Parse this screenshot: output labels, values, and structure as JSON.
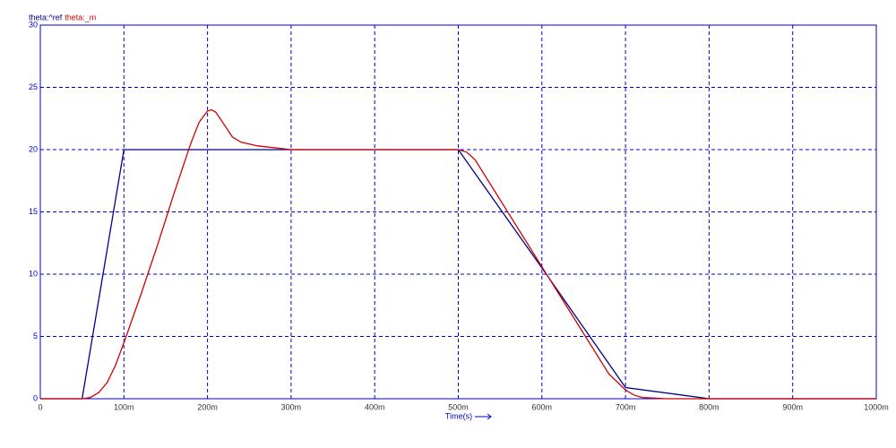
{
  "chart_data": {
    "type": "line",
    "xlabel": "Time(s)",
    "xlim": [
      0,
      1
    ],
    "xticks": [
      0,
      {
        "value": 0.1,
        "label": "100m"
      },
      {
        "value": 0.2,
        "label": "200m"
      },
      {
        "value": 0.3,
        "label": "300m"
      },
      {
        "value": 0.4,
        "label": "400m"
      },
      {
        "value": 0.5,
        "label": "500m"
      },
      {
        "value": 0.6,
        "label": "600m"
      },
      {
        "value": 0.7,
        "label": "700m"
      },
      {
        "value": 0.8,
        "label": "800m"
      },
      {
        "value": 0.9,
        "label": "900m"
      },
      {
        "value": 1,
        "label": "1000m"
      }
    ],
    "ylim": [
      0,
      30
    ],
    "yticks": [
      0,
      5,
      10,
      15,
      20,
      25,
      30
    ],
    "grid": true,
    "legend": "top-left",
    "series": [
      {
        "name": "theta:^ref",
        "color": "#00008b",
        "x": [
          0,
          0.05,
          0.1,
          0.5,
          0.6,
          0.7,
          0.8,
          1.0
        ],
        "values": [
          0,
          0,
          20,
          20,
          10.5,
          0.9,
          0,
          0
        ]
      },
      {
        "name": "theta:_m",
        "color": "#cc0000",
        "x": [
          0,
          0.05,
          0.06,
          0.07,
          0.08,
          0.09,
          0.1,
          0.12,
          0.14,
          0.16,
          0.18,
          0.19,
          0.2,
          0.205,
          0.21,
          0.22,
          0.23,
          0.24,
          0.26,
          0.3,
          0.4,
          0.5,
          0.51,
          0.52,
          0.6,
          0.68,
          0.7,
          0.71,
          0.72,
          0.75,
          0.8,
          1.0
        ],
        "values": [
          0,
          0,
          0.1,
          0.5,
          1.3,
          2.7,
          4.5,
          8.3,
          12.3,
          16.5,
          20.5,
          22.2,
          23.1,
          23.2,
          23,
          22,
          21,
          20.6,
          20.3,
          20,
          20,
          20,
          19.8,
          19.2,
          10.6,
          2,
          0.7,
          0.3,
          0.1,
          0,
          0,
          0
        ]
      }
    ]
  }
}
